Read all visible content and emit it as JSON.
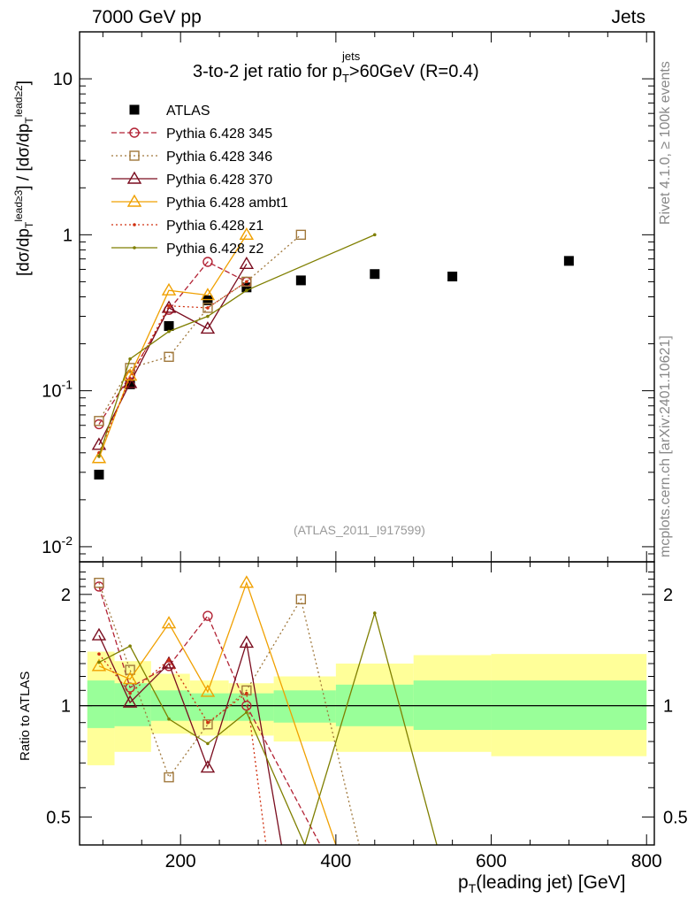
{
  "header": {
    "left_label": "7000 GeV pp",
    "right_label": "Jets"
  },
  "side_notes": {
    "rivet": "Rivet 4.1.0, ≥ 100k events",
    "mcplots": "mcplots.cern.ch [arXiv:2401.10621]"
  },
  "analysis_id": "(ATLAS_2011_I917599)",
  "chart_data": [
    {
      "panel": "main",
      "type": "scatter",
      "title": "3-to-2 jet ratio for p_T^jets >60GeV (R=0.4)",
      "ylabel": "[dσ/dp_T^lead≥3] / [dσ/dp_T^lead≥2]",
      "yscale": "log",
      "ylim": [
        0.008,
        20
      ],
      "xlim": [
        70,
        810
      ],
      "ytick_labels": [
        "10^-2",
        "10^-1",
        "1",
        "10"
      ],
      "legend_position": "top-left",
      "series": [
        {
          "name": "ATLAS",
          "marker": "filled-square",
          "line": "none",
          "color": "#000000",
          "x": [
            95,
            135,
            185,
            235,
            285,
            355,
            450,
            550,
            700
          ],
          "y": [
            0.029,
            0.11,
            0.26,
            0.38,
            0.46,
            0.51,
            0.56,
            0.54,
            0.68
          ]
        },
        {
          "name": "Pythia 6.428 345",
          "marker": "open-circle",
          "line": "dashed",
          "color": "#b22234",
          "x": [
            95,
            135,
            185,
            235,
            285
          ],
          "y": [
            0.061,
            0.125,
            0.33,
            0.67,
            0.5
          ]
        },
        {
          "name": "Pythia 6.428 346",
          "marker": "open-square",
          "line": "dotted",
          "color": "#a0783c",
          "x": [
            95,
            135,
            185,
            235,
            285,
            355
          ],
          "y": [
            0.064,
            0.14,
            0.165,
            0.34,
            0.5,
            1.0
          ]
        },
        {
          "name": "Pythia 6.428 370",
          "marker": "open-triangle",
          "line": "solid",
          "color": "#7a0c1e",
          "x": [
            95,
            135,
            185,
            235,
            285
          ],
          "y": [
            0.045,
            0.112,
            0.34,
            0.25,
            0.65
          ]
        },
        {
          "name": "Pythia 6.428 ambt1",
          "marker": "open-triangle",
          "line": "solid",
          "color": "#f0a000",
          "x": [
            95,
            135,
            185,
            235,
            285
          ],
          "y": [
            0.037,
            0.125,
            0.44,
            0.41,
            1.0
          ]
        },
        {
          "name": "Pythia 6.428 z1",
          "marker": "dot",
          "line": "dotted",
          "color": "#d03010",
          "x": [
            95,
            135,
            185,
            235,
            285
          ],
          "y": [
            0.04,
            0.12,
            0.35,
            0.34,
            0.5
          ]
        },
        {
          "name": "Pythia 6.428 z2",
          "marker": "dot",
          "line": "solid",
          "color": "#7f7f00",
          "x": [
            95,
            135,
            185,
            235,
            285,
            450
          ],
          "y": [
            0.038,
            0.16,
            0.24,
            0.3,
            0.44,
            1.0
          ]
        }
      ]
    },
    {
      "panel": "ratio",
      "type": "line",
      "xlabel": "p_T(leading jet) [GeV]",
      "ylabel": "Ratio to ATLAS",
      "yscale": "log",
      "ylim": [
        0.42,
        2.45
      ],
      "xlim": [
        70,
        810
      ],
      "xtick_labels": [
        "200",
        "400",
        "600",
        "800"
      ],
      "ytick_labels": [
        "0.5",
        "1",
        "2"
      ],
      "bands": {
        "bins": [
          [
            80,
            115
          ],
          [
            115,
            162
          ],
          [
            162,
            212
          ],
          [
            212,
            262
          ],
          [
            262,
            320
          ],
          [
            320,
            400
          ],
          [
            400,
            500
          ],
          [
            500,
            600
          ],
          [
            600,
            800
          ]
        ],
        "stat_syst_low": [
          0.69,
          0.75,
          0.84,
          0.83,
          0.83,
          0.8,
          0.75,
          0.75,
          0.73
        ],
        "stat_syst_high": [
          1.4,
          1.32,
          1.22,
          1.17,
          1.15,
          1.2,
          1.3,
          1.37,
          1.38
        ],
        "stat_low": [
          0.87,
          0.88,
          0.91,
          0.91,
          0.91,
          0.9,
          0.88,
          0.86,
          0.86
        ],
        "stat_high": [
          1.17,
          1.15,
          1.1,
          1.08,
          1.08,
          1.1,
          1.14,
          1.17,
          1.17
        ],
        "stat_syst_color": "#ffff99",
        "stat_color": "#99ff99"
      },
      "series": [
        {
          "name": "Pythia 6.428 345",
          "x": [
            95,
            135,
            185,
            235,
            285,
            380
          ],
          "y": [
            2.1,
            1.12,
            1.28,
            1.75,
            1.0,
            0.42
          ]
        },
        {
          "name": "Pythia 6.428 346",
          "x": [
            95,
            135,
            185,
            235,
            285,
            355,
            430
          ],
          "y": [
            2.15,
            1.25,
            0.64,
            0.89,
            1.1,
            1.94,
            0.42
          ]
        },
        {
          "name": "Pythia 6.428 370",
          "x": [
            95,
            135,
            185,
            235,
            285,
            330
          ],
          "y": [
            1.55,
            1.02,
            1.3,
            0.68,
            1.48,
            0.42
          ]
        },
        {
          "name": "Pythia 6.428 ambt1",
          "x": [
            95,
            135,
            185,
            235,
            285,
            400
          ],
          "y": [
            1.28,
            1.18,
            1.67,
            1.09,
            2.15,
            0.42
          ]
        },
        {
          "name": "Pythia 6.428 z1",
          "x": [
            95,
            135,
            185,
            235,
            285,
            310
          ],
          "y": [
            1.38,
            1.08,
            1.33,
            0.9,
            1.08,
            0.42
          ]
        },
        {
          "name": "Pythia 6.428 z2",
          "x": [
            95,
            135,
            185,
            235,
            285,
            360,
            450,
            530
          ],
          "y": [
            1.31,
            1.45,
            0.92,
            0.79,
            0.96,
            0.42,
            1.78,
            0.42
          ]
        }
      ]
    }
  ]
}
